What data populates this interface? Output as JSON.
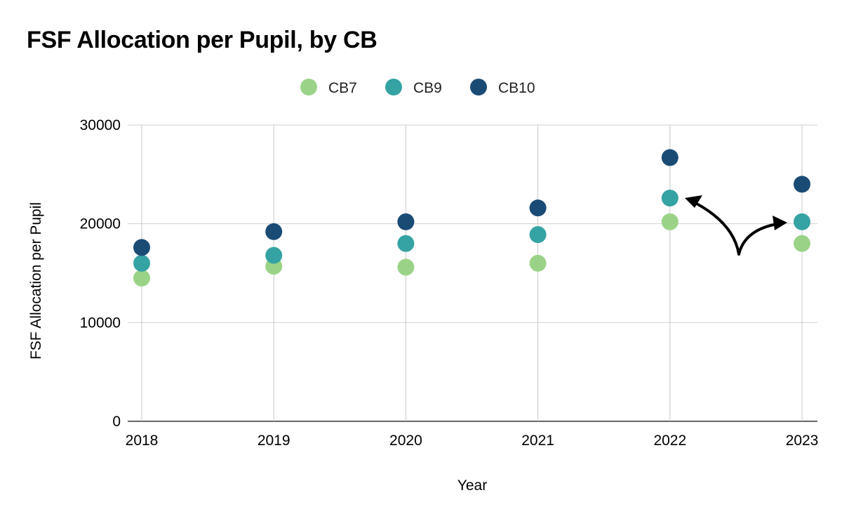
{
  "chart_data": {
    "type": "scatter",
    "title": "FSF Allocation per Pupil, by CB",
    "xlabel": "Year",
    "ylabel": "FSF Allocation per Pupil",
    "categories": [
      "2018",
      "2019",
      "2020",
      "2021",
      "2022",
      "2023"
    ],
    "ylim": [
      0,
      30000
    ],
    "yticks": [
      0,
      10000,
      20000,
      30000
    ],
    "grid": true,
    "legend_position": "top-center",
    "series": [
      {
        "name": "CB7",
        "color": "#9ad387",
        "values": [
          14500,
          15700,
          15600,
          16000,
          20200,
          18000
        ]
      },
      {
        "name": "CB9",
        "color": "#35a3a3",
        "values": [
          16000,
          16800,
          18000,
          18900,
          22600,
          20200
        ]
      },
      {
        "name": "CB10",
        "color": "#1a4b75",
        "values": [
          17600,
          19200,
          20200,
          21600,
          26700,
          24000
        ]
      }
    ],
    "annotation": {
      "type": "double-headed-curved-arrow",
      "between": [
        "2022",
        "2023"
      ],
      "series": "CB9",
      "color": "#000000"
    }
  }
}
